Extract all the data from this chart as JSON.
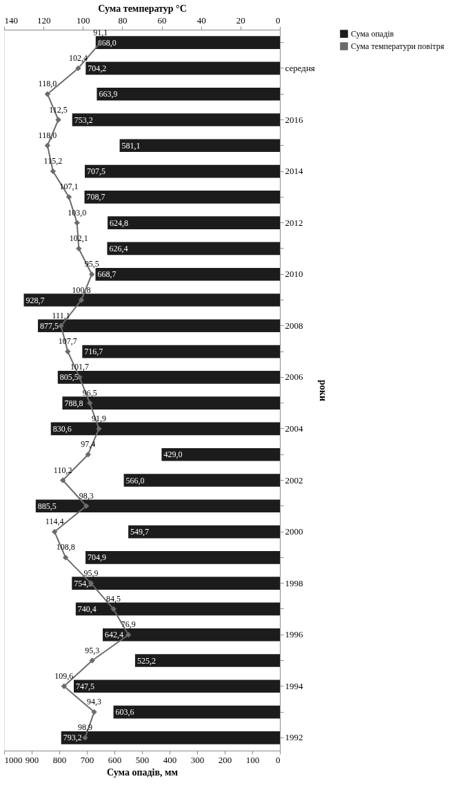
{
  "chart_data": {
    "type": "bar",
    "orientation": "horizontal",
    "categories": [
      null,
      "середня",
      null,
      "2016",
      null,
      "2014",
      null,
      "2012",
      null,
      "2010",
      null,
      "2008",
      null,
      "2006",
      null,
      "2004",
      null,
      "2002",
      null,
      "2000",
      null,
      "1998",
      null,
      "1996",
      null,
      "1994",
      null,
      "1992"
    ],
    "series": [
      {
        "name": "Сума опадів",
        "color": "#1c1c1c",
        "values": [
          668.0,
          704.2,
          663.9,
          753.2,
          581.1,
          707.5,
          708.7,
          624.8,
          626.4,
          668.7,
          928.7,
          877.5,
          716.7,
          805.5,
          788.8,
          830.6,
          429.0,
          566.0,
          885.5,
          549.7,
          704.9,
          754.3,
          740.4,
          642.4,
          525.2,
          747.5,
          603.6,
          793.2
        ],
        "value_labels": [
          "668,0",
          "704,2",
          "663,9",
          "753,2",
          "581,1",
          "707,5",
          "708,7",
          "624,8",
          "626,4",
          "668,7",
          "928,7",
          "877,5",
          "716,7",
          "805,5",
          "788,8",
          "830,6",
          "429,0",
          "566,0",
          "885,5",
          "549,7",
          "704,9",
          "754,3",
          "740,4",
          "642,4",
          "525,2",
          "747,5",
          "603,6",
          "793,2"
        ]
      },
      {
        "name": "Сума температури повітря",
        "type": "line",
        "axis": "x2",
        "color": "#6b6b6b",
        "marker": "diamond",
        "values": [
          91.1,
          102.4,
          118.0,
          112.5,
          118.0,
          115.2,
          107.1,
          103.0,
          102.1,
          95.5,
          100.8,
          111.1,
          107.7,
          101.7,
          96.5,
          91.9,
          97.4,
          110.2,
          98.3,
          114.4,
          108.8,
          95.9,
          84.5,
          76.9,
          95.3,
          109.6,
          94.3,
          98.9
        ],
        "value_labels": [
          "91,1",
          "102,4",
          "118,0",
          "112,5",
          "118,0",
          "115,2",
          "107,1",
          "103,0",
          "102,1",
          "95,5",
          "100,8",
          "111,1",
          "107,7",
          "101,7",
          "96,5",
          "91,9",
          "97,4",
          "110,2",
          "98,3",
          "114,4",
          "108,8",
          "95,9",
          "84,5",
          "76,9",
          "95,3",
          "109,6",
          "94,3",
          "98,9"
        ]
      }
    ],
    "xlim": [
      1000,
      0
    ],
    "xticks": [
      1000,
      900,
      800,
      700,
      600,
      500,
      400,
      300,
      200,
      100,
      0
    ],
    "x2lim": [
      140,
      0
    ],
    "x2ticks": [
      140,
      120,
      100,
      80,
      60,
      40,
      20,
      0
    ],
    "xlabel": "Сума опадів, мм",
    "x2label": "Сума температур °С",
    "ylabel": "роки",
    "legend": "right",
    "grid": false
  }
}
